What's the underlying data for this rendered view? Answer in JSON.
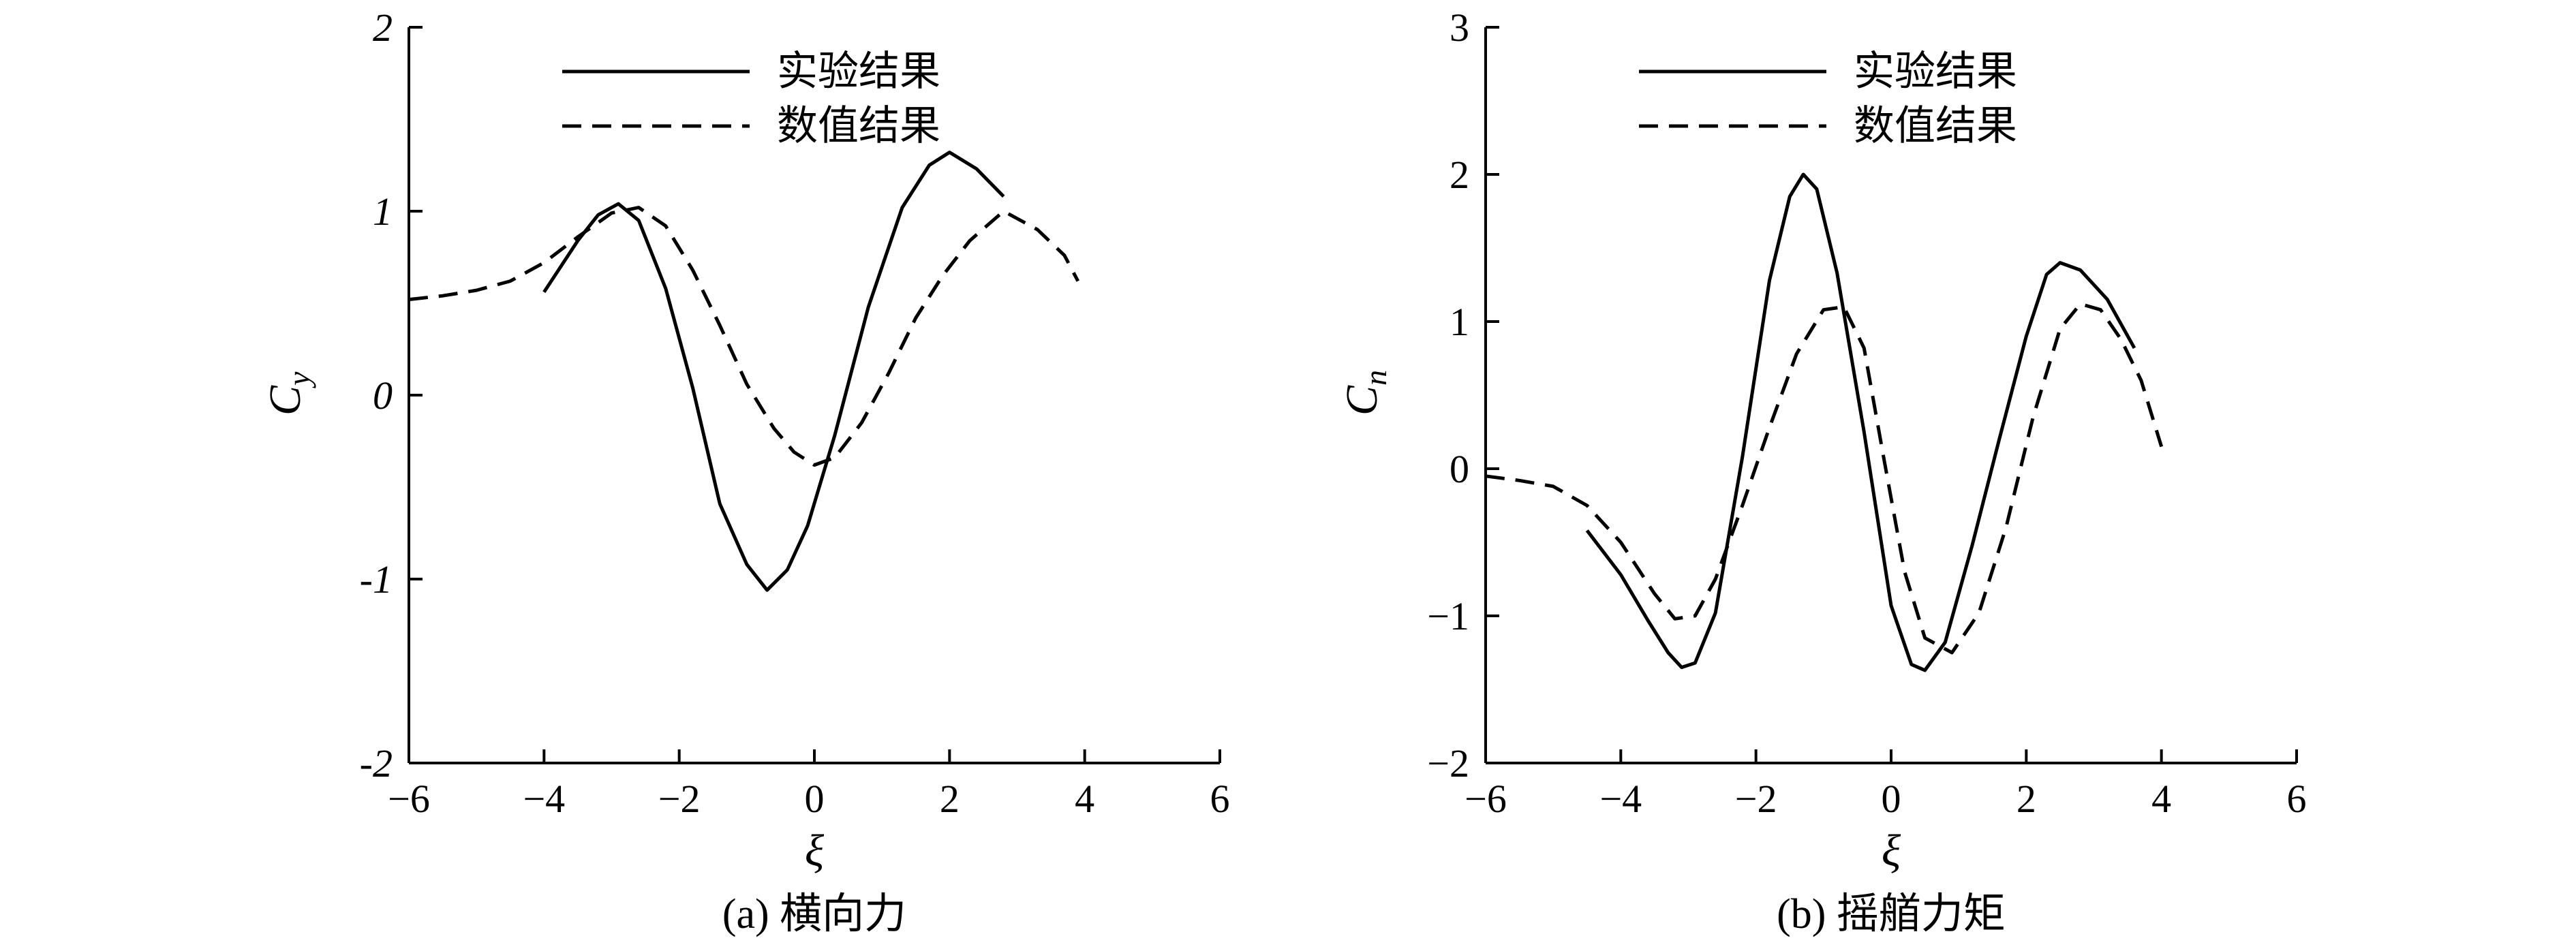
{
  "chart_data": [
    {
      "type": "line",
      "caption": "(a) 横向力",
      "xlabel": "ξ",
      "ylabel": "C",
      "ylabel_sub": "y",
      "xlim": [
        -6,
        6
      ],
      "ylim": [
        -2,
        2
      ],
      "xticks": [
        -6,
        -4,
        -2,
        0,
        2,
        4,
        6
      ],
      "xtick_labels": [
        "−6",
        "−4",
        "−2",
        "0",
        "2",
        "4",
        "6"
      ],
      "yticks": [
        -2,
        -1,
        0,
        1,
        2
      ],
      "ytick_labels": [
        "-2",
        "-1",
        "0",
        "1",
        "2"
      ],
      "ytick_italic": true,
      "legend_position": "top-center",
      "series": [
        {
          "name": "实验结果",
          "style": "solid",
          "x": [
            -4.0,
            -3.5,
            -3.2,
            -2.9,
            -2.6,
            -2.2,
            -1.8,
            -1.4,
            -1.0,
            -0.7,
            -0.4,
            -0.1,
            0.3,
            0.8,
            1.3,
            1.7,
            2.0,
            2.4,
            2.8
          ],
          "y": [
            0.56,
            0.84,
            0.98,
            1.04,
            0.95,
            0.58,
            0.04,
            -0.59,
            -0.92,
            -1.06,
            -0.95,
            -0.71,
            -0.22,
            0.48,
            1.02,
            1.25,
            1.32,
            1.23,
            1.08
          ]
        },
        {
          "name": "数值结果",
          "style": "dashed",
          "x": [
            -6.0,
            -5.5,
            -5.0,
            -4.5,
            -4.0,
            -3.5,
            -3.0,
            -2.6,
            -2.2,
            -1.8,
            -1.4,
            -1.0,
            -0.6,
            -0.3,
            0.0,
            0.3,
            0.7,
            1.1,
            1.5,
            1.9,
            2.3,
            2.8,
            3.3,
            3.7,
            3.9
          ],
          "y": [
            0.52,
            0.54,
            0.57,
            0.62,
            0.72,
            0.86,
            0.99,
            1.02,
            0.92,
            0.68,
            0.38,
            0.06,
            -0.18,
            -0.31,
            -0.38,
            -0.34,
            -0.15,
            0.12,
            0.42,
            0.65,
            0.84,
            1.0,
            0.9,
            0.76,
            0.62
          ]
        }
      ]
    },
    {
      "type": "line",
      "caption": "(b) 摇艏力矩",
      "xlabel": "ξ",
      "ylabel": "C",
      "ylabel_sub": "n",
      "xlim": [
        -6,
        6
      ],
      "ylim": [
        -2,
        3
      ],
      "xticks": [
        -6,
        -4,
        -2,
        0,
        2,
        4,
        6
      ],
      "xtick_labels": [
        "−6",
        "−4",
        "−2",
        "0",
        "2",
        "4",
        "6"
      ],
      "yticks": [
        -2,
        -1,
        0,
        1,
        2,
        3
      ],
      "ytick_labels": [
        "−2",
        "−1",
        "0",
        "1",
        "2",
        "3"
      ],
      "ytick_italic": false,
      "legend_position": "top-center",
      "series": [
        {
          "name": "实验结果",
          "style": "solid",
          "x": [
            -4.5,
            -4.0,
            -3.6,
            -3.3,
            -3.1,
            -2.9,
            -2.6,
            -2.2,
            -1.8,
            -1.5,
            -1.3,
            -1.1,
            -0.8,
            -0.4,
            0.0,
            0.3,
            0.5,
            0.8,
            1.2,
            1.6,
            2.0,
            2.3,
            2.5,
            2.8,
            3.2,
            3.6
          ],
          "y": [
            -0.42,
            -0.72,
            -1.03,
            -1.25,
            -1.35,
            -1.32,
            -0.98,
            0.08,
            1.28,
            1.85,
            2.0,
            1.9,
            1.33,
            0.25,
            -0.93,
            -1.33,
            -1.37,
            -1.18,
            -0.52,
            0.2,
            0.9,
            1.32,
            1.4,
            1.35,
            1.15,
            0.82
          ]
        },
        {
          "name": "数值结果",
          "style": "dashed",
          "x": [
            -6.0,
            -5.5,
            -5.0,
            -4.5,
            -4.0,
            -3.5,
            -3.2,
            -2.9,
            -2.6,
            -2.2,
            -1.8,
            -1.4,
            -1.0,
            -0.7,
            -0.4,
            -0.1,
            0.2,
            0.5,
            0.9,
            1.3,
            1.7,
            2.1,
            2.5,
            2.8,
            3.1,
            3.4,
            3.7,
            4.0
          ],
          "y": [
            -0.05,
            -0.08,
            -0.12,
            -0.25,
            -0.5,
            -0.85,
            -1.02,
            -1.0,
            -0.75,
            -0.25,
            0.28,
            0.78,
            1.08,
            1.1,
            0.82,
            0.05,
            -0.7,
            -1.15,
            -1.25,
            -0.98,
            -0.4,
            0.35,
            0.95,
            1.12,
            1.08,
            0.88,
            0.6,
            0.15
          ]
        }
      ]
    }
  ]
}
